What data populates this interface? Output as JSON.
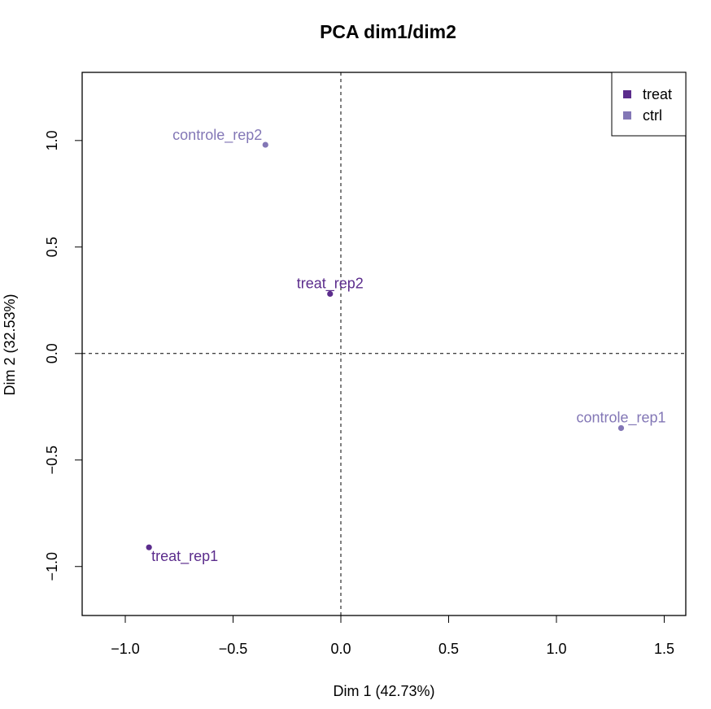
{
  "chart_data": {
    "type": "scatter",
    "title": "PCA dim1/dim2",
    "xlabel": "Dim 1 (42.73%)",
    "ylabel": "Dim 2 (32.53%)",
    "xlim": [
      -1.2,
      1.6
    ],
    "ylim": [
      -1.23,
      1.32
    ],
    "x_ticks": [
      -1.0,
      -0.5,
      0.0,
      0.5,
      1.0,
      1.5
    ],
    "x_tick_labels": [
      "−1.0",
      "−0.5",
      "0.0",
      "0.5",
      "1.0",
      "1.5"
    ],
    "y_ticks": [
      -1.0,
      -0.5,
      0.0,
      0.5,
      1.0
    ],
    "y_tick_labels": [
      "−1.0",
      "−0.5",
      "0.0",
      "0.5",
      "1.0"
    ],
    "reference_lines": {
      "x": 0,
      "y": 0,
      "style": "dashed"
    },
    "grid": false,
    "legend_position": "top-right",
    "series": [
      {
        "name": "treat",
        "color": "#5b2c8c",
        "points": [
          {
            "label": "treat_rep2",
            "x": -0.05,
            "y": 0.28,
            "label_anchor": "above"
          },
          {
            "label": "treat_rep1",
            "x": -0.89,
            "y": -0.91,
            "label_anchor": "below-right"
          }
        ]
      },
      {
        "name": "ctrl",
        "color": "#8377b6",
        "points": [
          {
            "label": "controle_rep2",
            "x": -0.35,
            "y": 0.98,
            "label_anchor": "above-left"
          },
          {
            "label": "controle_rep1",
            "x": 1.3,
            "y": -0.35,
            "label_anchor": "above"
          }
        ]
      }
    ]
  }
}
